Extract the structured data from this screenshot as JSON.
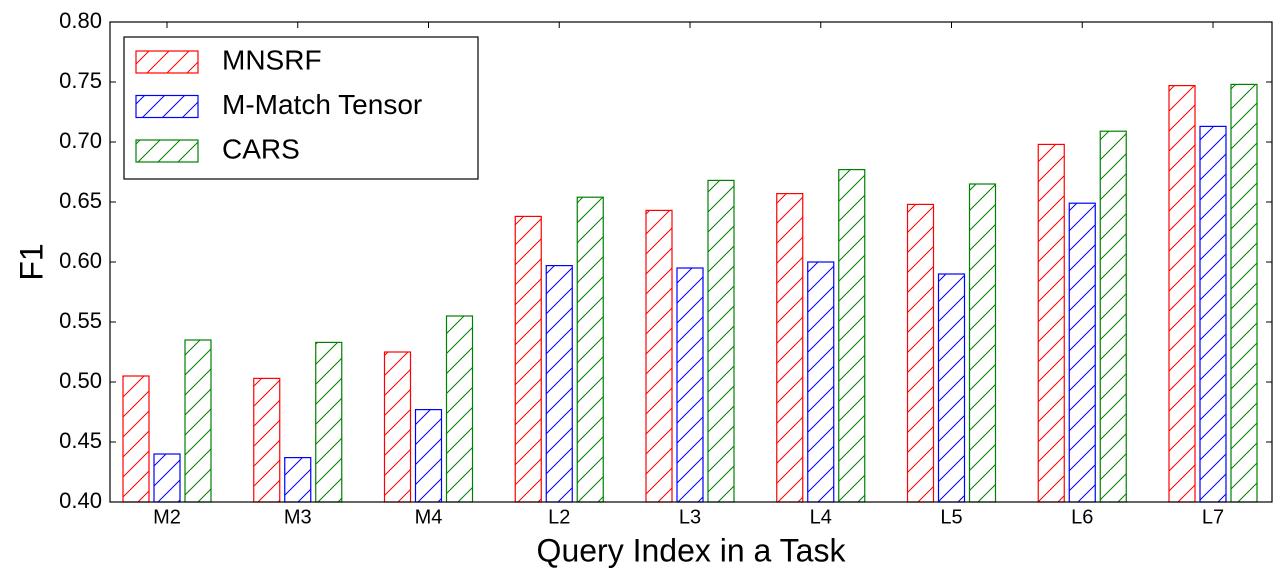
{
  "chart_data": {
    "type": "bar",
    "x_label": "Query Index in a Task",
    "y_label": "F1",
    "categories": [
      "M2",
      "M3",
      "M4",
      "L2",
      "L3",
      "L4",
      "L5",
      "L6",
      "L7"
    ],
    "series": [
      {
        "name": "MNSRF",
        "color": "#ff0000",
        "values": [
          0.505,
          0.503,
          0.525,
          0.638,
          0.643,
          0.657,
          0.648,
          0.698,
          0.747
        ]
      },
      {
        "name": "M-Match Tensor",
        "color": "#0000ff",
        "values": [
          0.44,
          0.437,
          0.477,
          0.597,
          0.595,
          0.6,
          0.59,
          0.649,
          0.713
        ]
      },
      {
        "name": "CARS",
        "color": "#008000",
        "values": [
          0.535,
          0.533,
          0.555,
          0.654,
          0.668,
          0.677,
          0.665,
          0.709,
          0.748
        ]
      }
    ],
    "ylim": [
      0.4,
      0.8
    ],
    "yticks": [
      {
        "value": 0.4,
        "label": "0.40"
      },
      {
        "value": 0.45,
        "label": "0.45"
      },
      {
        "value": 0.5,
        "label": "0.50"
      },
      {
        "value": 0.55,
        "label": "0.55"
      },
      {
        "value": 0.6,
        "label": "0.60"
      },
      {
        "value": 0.65,
        "label": "0.65"
      },
      {
        "value": 0.7,
        "label": "0.70"
      },
      {
        "value": 0.75,
        "label": "0.75"
      },
      {
        "value": 0.8,
        "label": "0.80"
      }
    ],
    "legend": "upper left",
    "hatch": true
  }
}
